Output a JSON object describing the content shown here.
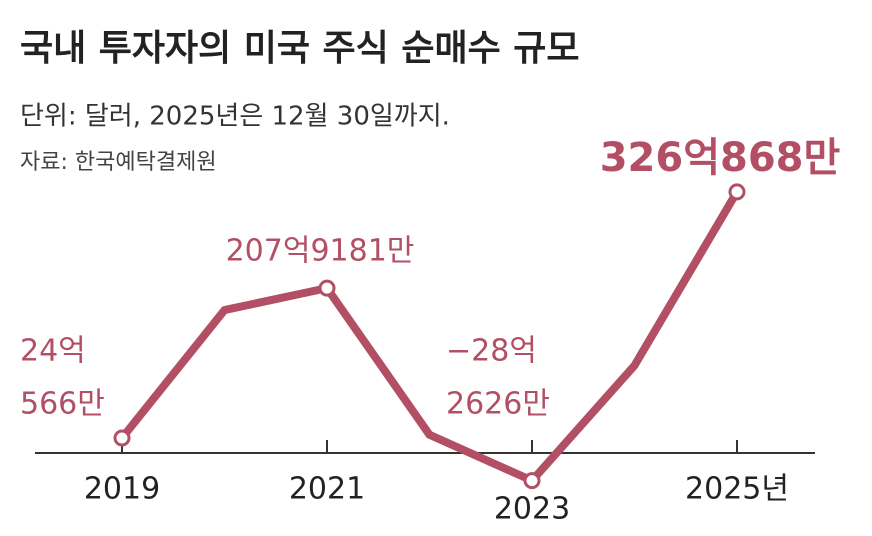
{
  "chart_data": {
    "type": "line",
    "title": "국내 투자자의 미국 주식 순매수 규모",
    "subtitle": "단위: 달러, 2025년은 12월 30일까지.",
    "source": "자료: 한국예탁결제원",
    "categories": [
      "2019",
      null,
      "2021",
      null,
      "2023",
      null,
      "2025년"
    ],
    "values": [
      24.0566,
      181,
      207.9181,
      28,
      -28.2626,
      113,
      326.0868
    ],
    "value_labels": [
      [
        "24억",
        "566만"
      ],
      null,
      [
        "207억9181만"
      ],
      null,
      [
        "−28억",
        "2626만"
      ],
      null,
      [
        "326억868만"
      ]
    ],
    "color": "#b24f64",
    "ylim": [
      -40,
      340
    ]
  }
}
